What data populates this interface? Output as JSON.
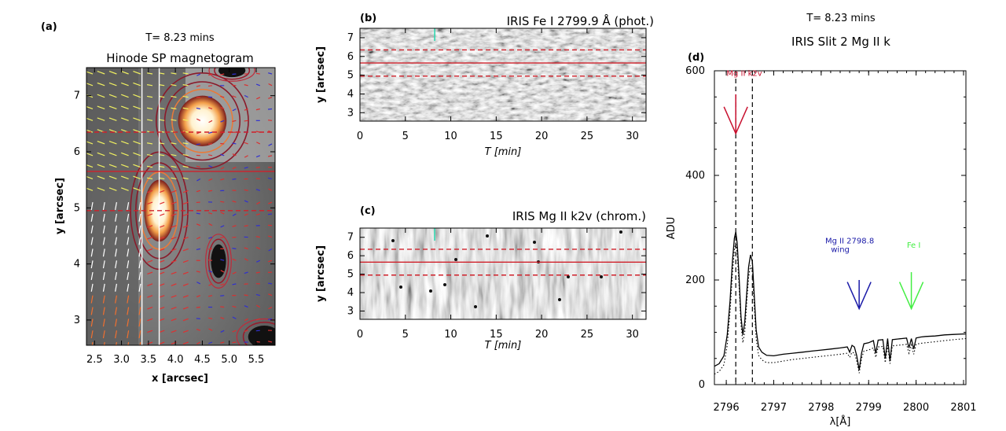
{
  "chart_data": [
    {
      "panel": "(a)",
      "type": "heatmap",
      "time_label": "T= 8.23 mins",
      "title": "Hinode SP magnetogram",
      "xlabel": "x [arcsec]",
      "ylabel": "y [arcsec]",
      "xlim": [
        2.35,
        5.85
      ],
      "ylim": [
        2.55,
        7.5
      ],
      "xticks": [
        "2.5",
        "3.0",
        "3.5",
        "4.0",
        "4.5",
        "5.0",
        "5.5"
      ],
      "xtick_values": [
        2.5,
        3.0,
        3.5,
        4.0,
        4.5,
        5.0,
        5.5
      ],
      "yticks": [
        "3",
        "4",
        "5",
        "6",
        "7"
      ],
      "ytick_values": [
        3,
        4,
        5,
        6,
        7
      ],
      "bright_features": [
        {
          "x": 3.7,
          "y": 4.95,
          "rx": 0.28,
          "ry": 0.55
        },
        {
          "x": 4.5,
          "y": 6.55,
          "rx": 0.45,
          "ry": 0.45
        }
      ],
      "dark_features": [
        {
          "x": 4.8,
          "y": 4.05,
          "rx": 0.14,
          "ry": 0.3
        },
        {
          "x": 5.05,
          "y": 7.45,
          "rx": 0.25,
          "ry": 0.12
        },
        {
          "x": 5.65,
          "y": 2.7,
          "rx": 0.3,
          "ry": 0.2
        }
      ],
      "white_lines_x": [
        3.38,
        3.7
      ],
      "red_lines_y": [
        5.65
      ],
      "red_dashed_lines_y": [
        6.35,
        4.95
      ]
    },
    {
      "panel": "(b)",
      "type": "heatmap",
      "title": "IRIS Fe I 2799.9 Å (phot.)",
      "xlabel": "T [min]",
      "ylabel": "y [arcsec]",
      "xlim": [
        0,
        31.5
      ],
      "ylim": [
        2.55,
        7.5
      ],
      "xticks": [
        "0",
        "5",
        "10",
        "15",
        "20",
        "25",
        "30"
      ],
      "xtick_values": [
        0,
        5,
        10,
        15,
        20,
        25,
        30
      ],
      "yticks": [
        "3",
        "4",
        "5",
        "6",
        "7"
      ],
      "ytick_values": [
        3,
        4,
        5,
        6,
        7
      ],
      "marker_t": 8.23,
      "red_line_y": 5.65,
      "red_dashed_y": [
        6.35,
        4.95
      ]
    },
    {
      "panel": "(c)",
      "type": "heatmap",
      "title": "IRIS Mg II k2v (chrom.)",
      "xlabel": "T [min]",
      "ylabel": "y [arcsec]",
      "xlim": [
        0,
        31.5
      ],
      "ylim": [
        2.55,
        7.5
      ],
      "xticks": [
        "0",
        "5",
        "10",
        "15",
        "20",
        "25",
        "30"
      ],
      "xtick_values": [
        0,
        5,
        10,
        15,
        20,
        25,
        30
      ],
      "yticks": [
        "3",
        "4",
        "5",
        "6",
        "7"
      ],
      "ytick_values": [
        3,
        4,
        5,
        6,
        7
      ],
      "marker_t": 8.23,
      "red_line_y": 5.65,
      "red_dashed_y": [
        6.35,
        4.95
      ]
    },
    {
      "panel": "(d)",
      "type": "line",
      "time_label": "T= 8.23 mins",
      "title": "IRIS Slit 2 Mg II k",
      "xlabel": "λ[Å]",
      "ylabel": "ADU",
      "xlim": [
        2795.75,
        2801.05
      ],
      "ylim": [
        0,
        600
      ],
      "xticks": [
        "2796",
        "2797",
        "2798",
        "2799",
        "2800",
        "2801"
      ],
      "xtick_values": [
        2796,
        2797,
        2798,
        2799,
        2800,
        2801
      ],
      "yticks": [
        "0",
        "200",
        "400",
        "600"
      ],
      "ytick_values": [
        0,
        200,
        400,
        600
      ],
      "vlines_dashed": [
        2796.2,
        2796.55
      ],
      "annotations": [
        {
          "text": "Mg II k2v",
          "color": "#c8102e",
          "arrow_x": 2796.2,
          "arrow_top": 555,
          "arrow_bottom": 480
        },
        {
          "text": "Mg II 2798.8",
          "text2": "wing",
          "color": "#1a1aa8",
          "arrow_x": 2798.8,
          "arrow_top": 200,
          "arrow_bottom": 145
        },
        {
          "text": "Fe I",
          "color": "#44ee44",
          "arrow_x": 2799.9,
          "arrow_top": 215,
          "arrow_bottom": 145
        }
      ],
      "series": [
        {
          "style": "solid",
          "x": [
            2795.75,
            2795.85,
            2795.95,
            2796.02,
            2796.08,
            2796.13,
            2796.17,
            2796.2,
            2796.23,
            2796.27,
            2796.31,
            2796.35,
            2796.39,
            2796.43,
            2796.47,
            2796.51,
            2796.55,
            2796.59,
            2796.63,
            2796.68,
            2796.75,
            2796.85,
            2797.0,
            2797.2,
            2797.4,
            2797.6,
            2797.8,
            2798.0,
            2798.2,
            2798.4,
            2798.55,
            2798.6,
            2798.65,
            2798.7,
            2798.75,
            2798.8,
            2798.85,
            2798.9,
            2799.0,
            2799.1,
            2799.15,
            2799.2,
            2799.3,
            2799.35,
            2799.4,
            2799.45,
            2799.5,
            2799.6,
            2799.7,
            2799.8,
            2799.85,
            2799.9,
            2799.95,
            2800.0,
            2800.05,
            2800.1,
            2800.2,
            2800.4,
            2800.6,
            2800.8,
            2801.05
          ],
          "y": [
            35,
            40,
            55,
            95,
            160,
            235,
            280,
            292,
            270,
            205,
            130,
            95,
            120,
            175,
            225,
            248,
            235,
            170,
            105,
            72,
            62,
            56,
            55,
            58,
            60,
            62,
            64,
            66,
            68,
            70,
            72,
            62,
            75,
            72,
            55,
            28,
            60,
            78,
            80,
            84,
            60,
            85,
            86,
            50,
            88,
            45,
            86,
            87,
            88,
            89,
            70,
            88,
            68,
            89,
            90,
            91,
            92,
            93,
            95,
            96,
            97
          ]
        },
        {
          "style": "dotted",
          "x": [
            2795.75,
            2795.85,
            2795.95,
            2796.02,
            2796.08,
            2796.13,
            2796.17,
            2796.2,
            2796.23,
            2796.27,
            2796.31,
            2796.35,
            2796.39,
            2796.43,
            2796.47,
            2796.51,
            2796.55,
            2796.59,
            2796.63,
            2796.68,
            2796.75,
            2796.85,
            2797.0,
            2797.2,
            2797.4,
            2797.6,
            2797.8,
            2798.0,
            2798.2,
            2798.4,
            2798.55,
            2798.6,
            2798.65,
            2798.7,
            2798.75,
            2798.8,
            2798.85,
            2798.9,
            2799.0,
            2799.1,
            2799.15,
            2799.2,
            2799.3,
            2799.35,
            2799.4,
            2799.45,
            2799.5,
            2799.6,
            2799.7,
            2799.8,
            2799.85,
            2799.9,
            2799.95,
            2800.0,
            2800.05,
            2800.1,
            2800.2,
            2800.4,
            2800.6,
            2800.8,
            2801.05
          ],
          "y": [
            20,
            25,
            38,
            75,
            140,
            210,
            258,
            272,
            250,
            188,
            115,
            80,
            100,
            155,
            205,
            228,
            215,
            150,
            88,
            56,
            47,
            42,
            42,
            45,
            48,
            50,
            52,
            54,
            56,
            58,
            60,
            52,
            62,
            60,
            45,
            22,
            50,
            64,
            66,
            70,
            52,
            72,
            73,
            42,
            75,
            40,
            74,
            75,
            76,
            77,
            60,
            76,
            58,
            77,
            78,
            79,
            80,
            82,
            84,
            86,
            88
          ]
        }
      ]
    }
  ]
}
